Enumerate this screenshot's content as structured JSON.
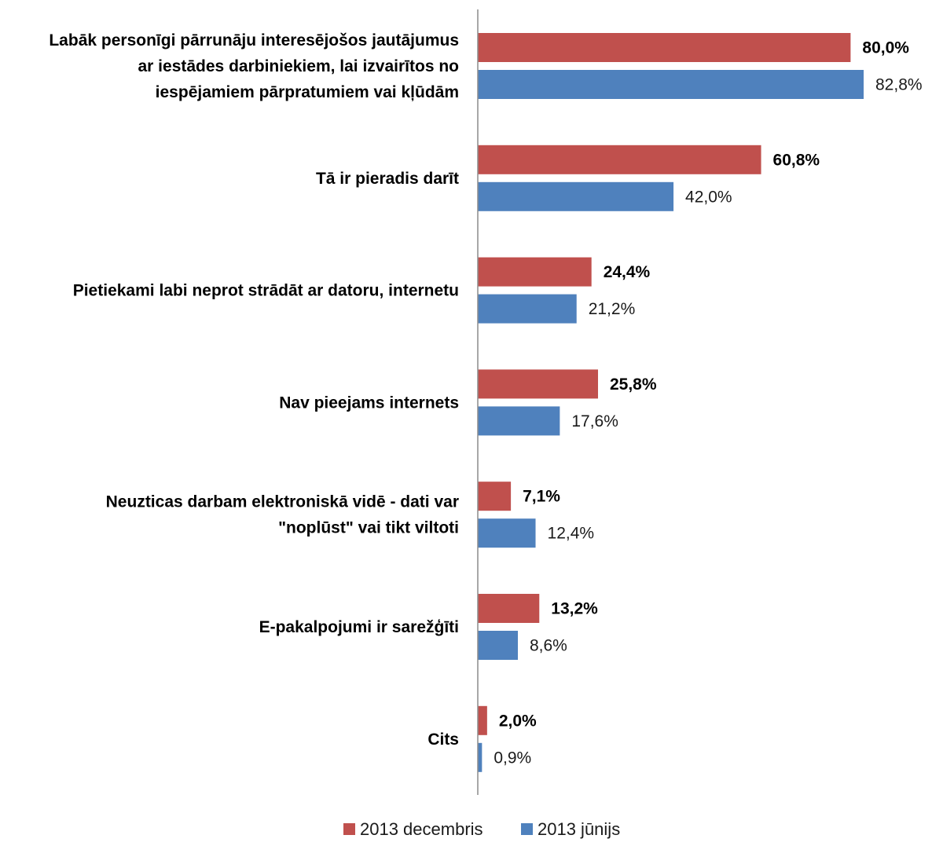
{
  "chart_data": {
    "type": "bar",
    "orientation": "horizontal",
    "categories": [
      [
        "Labāk personīgi pārrunāju interesējošos jautājumus",
        "ar iestādes darbiniekiem, lai izvairītos no",
        "iespējamiem pārpratumiem vai kļūdām"
      ],
      [
        "Tā ir pieradis darīt"
      ],
      [
        "Pietiekami labi neprot strādāt ar datoru, internetu"
      ],
      [
        "Nav pieejams internets"
      ],
      [
        "Neuzticas darbam elektroniskā vidē - dati var",
        "\"noplūst\" vai tikt viltoti"
      ],
      [
        "E-pakalpojumi ir sarežģīti"
      ],
      [
        "Cits"
      ]
    ],
    "series": [
      {
        "name": "2013 decembris",
        "color": "#c0504d",
        "label_bold": true,
        "values": [
          80.0,
          60.8,
          24.4,
          25.8,
          7.1,
          13.2,
          2.0
        ],
        "labels": [
          "80,0%",
          "60,8%",
          "24,4%",
          "25,8%",
          "7,1%",
          "13,2%",
          "2,0%"
        ]
      },
      {
        "name": "2013 jūnijs",
        "color": "#4f81bd",
        "label_bold": false,
        "values": [
          82.8,
          42.0,
          21.2,
          17.6,
          12.4,
          8.6,
          0.9
        ],
        "labels": [
          "82,8%",
          "42,0%",
          "21,2%",
          "17,6%",
          "12,4%",
          "8,6%",
          "0,9%"
        ]
      }
    ],
    "xlim": [
      0,
      100
    ],
    "grid": false,
    "legend_position": "bottom"
  }
}
